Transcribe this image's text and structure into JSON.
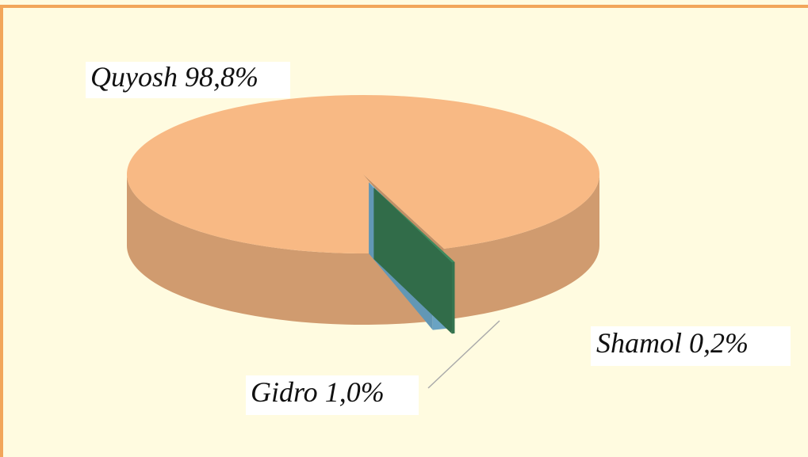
{
  "chart_data": {
    "type": "pie3d",
    "categories": [
      "Quyosh",
      "Gidro",
      "Shamol"
    ],
    "values": [
      98.8,
      1.0,
      0.2
    ],
    "value_labels": [
      "98,8%",
      "1,0%",
      "0,2%"
    ],
    "colors": [
      "#f8b984",
      "#7ec2e8",
      "#3f8a5e"
    ]
  }
}
